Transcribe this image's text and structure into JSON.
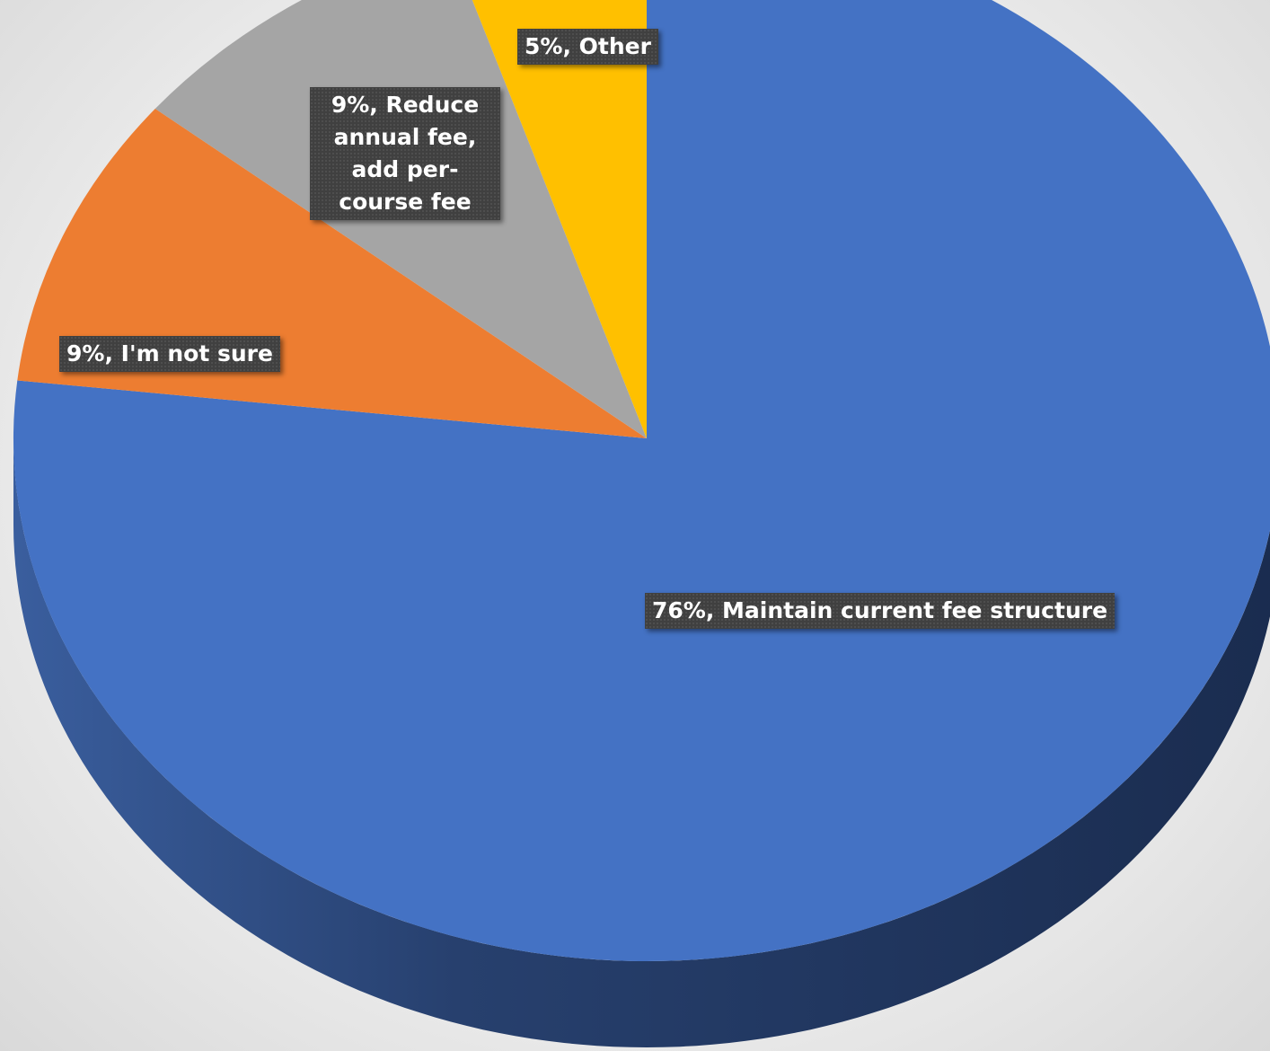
{
  "chart_data": {
    "type": "pie",
    "title": "",
    "style": "3d",
    "slices": [
      {
        "label": "Maintain current fee structure",
        "value": 76,
        "label_text": "76%, Maintain current fee structure",
        "color": "#4472C4"
      },
      {
        "label": "I'm not sure",
        "value": 9,
        "label_text": "9%, I'm not sure",
        "color": "#ED7D31"
      },
      {
        "label": "Reduce annual fee, add per-course fee",
        "value": 9,
        "label_text": "9%, Reduce annual fee, add per-course fee",
        "color": "#A5A5A5"
      },
      {
        "label": "Other",
        "value": 5,
        "label_text": "5%, Other",
        "color": "#FFC000"
      }
    ],
    "legend": "none",
    "data_labels": "category and percent"
  },
  "labels": {
    "maintain": "76%, Maintain current fee structure",
    "not_sure": "9%, I'm not sure",
    "reduce": "9%, Reduce annual fee, add per-course fee",
    "other": "5%, Other"
  }
}
